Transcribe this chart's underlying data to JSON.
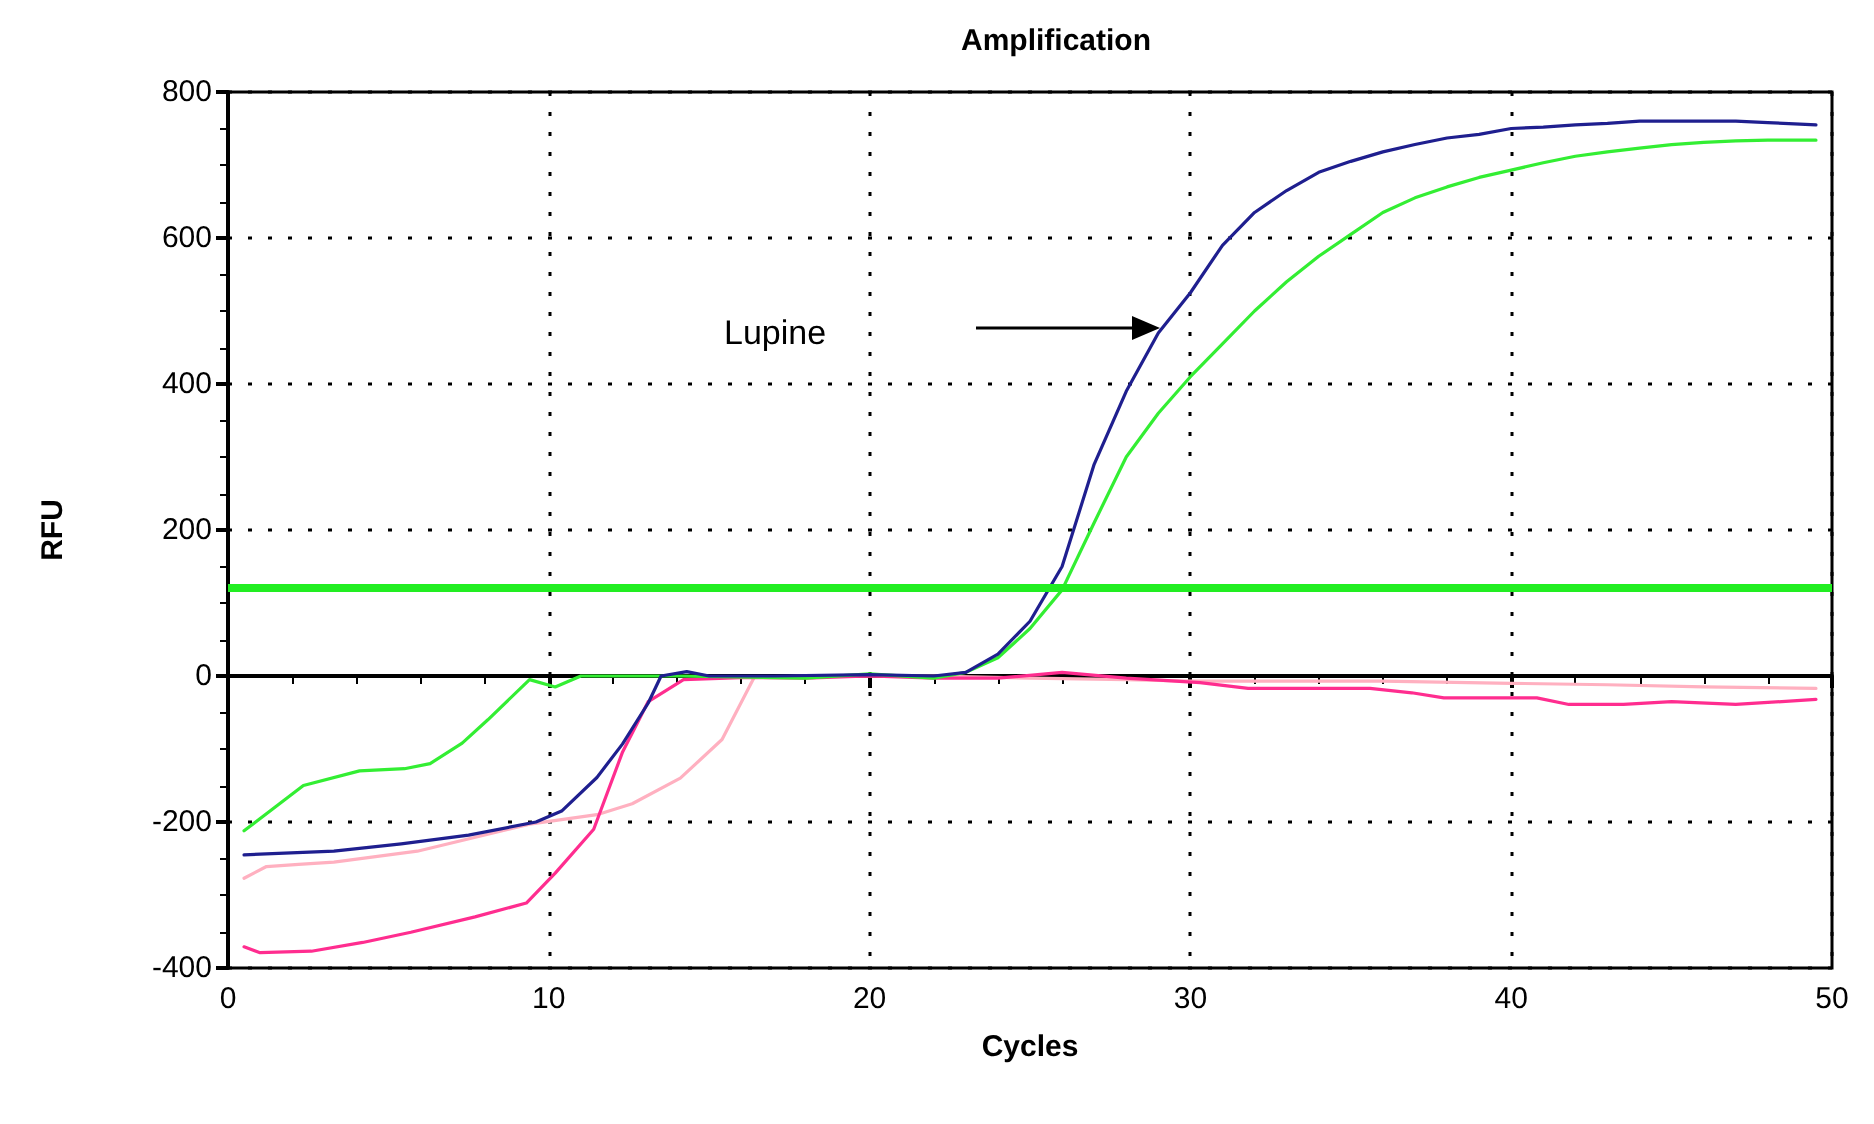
{
  "chart_data": {
    "type": "line",
    "title": "Amplification",
    "xlabel": "Cycles",
    "ylabel": "RFU",
    "xlim": [
      0,
      50
    ],
    "xticks": [
      0,
      10,
      20,
      30,
      40,
      50
    ],
    "ylim": [
      -400,
      800
    ],
    "yticks": [
      -400,
      -200,
      0,
      200,
      400,
      600,
      800
    ],
    "grid": true,
    "marker": "none",
    "line_style": "solid",
    "series": [
      {
        "color": "#ffb0c0",
        "x": [
          0.5,
          1.2,
          2.2,
          3.3,
          5.9,
          9.4,
          11.5,
          12.6,
          14.1,
          15.4,
          16.4,
          18,
          20,
          22,
          25,
          28,
          30,
          33,
          36,
          40,
          43,
          46,
          49.5
        ],
        "values": [
          -277,
          -261,
          -258,
          -255,
          -240,
          -203,
          -190,
          -175,
          -140,
          -87,
          -2,
          0,
          0,
          0,
          -3,
          -5,
          -7,
          -7,
          -7,
          -10,
          -12,
          -15,
          -17
        ]
      },
      {
        "color": "#ff2d8f",
        "x": [
          0.5,
          1,
          2.6,
          4.2,
          5.7,
          7.7,
          9.3,
          10.2,
          11.4,
          12.3,
          13.1,
          14.2,
          16.2,
          18,
          20,
          22,
          24,
          26,
          28,
          30.3,
          31.8,
          35.6,
          36.9,
          37.9,
          40.8,
          41.8,
          43.5,
          45,
          47,
          49.5
        ],
        "values": [
          -371,
          -379,
          -377,
          -365,
          -351,
          -330,
          -311,
          -270,
          -210,
          -104,
          -35,
          -5,
          -2,
          -3,
          0,
          -3,
          -3,
          5,
          -3,
          -9,
          -17,
          -17,
          -23,
          -30,
          -30,
          -39,
          -39,
          -35,
          -39,
          -32
        ]
      },
      {
        "color": "#33ee33",
        "x": [
          0.5,
          2.35,
          4.1,
          5.5,
          6.3,
          7.3,
          8.1,
          9.4,
          10.2,
          11,
          14,
          18,
          20,
          22,
          23,
          24,
          25,
          26,
          27,
          28,
          29,
          30,
          31,
          32,
          33,
          34,
          35,
          36,
          37,
          38,
          39,
          40,
          41,
          42,
          43,
          44,
          45,
          46,
          47,
          48,
          49.5
        ],
        "values": [
          -212,
          -150,
          -130,
          -127,
          -120,
          -92,
          -60,
          -5,
          -15,
          0,
          0,
          -3,
          3,
          -3,
          5,
          25,
          65,
          118,
          210,
          300,
          360,
          410,
          455,
          500,
          540,
          575,
          605,
          635,
          655,
          670,
          683,
          693,
          703,
          712,
          718,
          723,
          728,
          731,
          733,
          734,
          734
        ]
      },
      {
        "color": "#1f1f8f",
        "x": [
          0.5,
          3.3,
          5.4,
          7.5,
          9.6,
          10.4,
          11.5,
          12.3,
          13.1,
          13.5,
          14.3,
          15,
          17,
          20,
          22,
          23,
          24,
          25,
          26,
          27,
          28,
          29,
          30,
          31,
          32,
          33,
          34,
          35,
          36,
          37,
          38,
          39,
          40,
          41,
          42,
          43,
          44,
          45,
          46,
          47,
          48,
          49,
          49.5
        ],
        "values": [
          -245,
          -240,
          -230,
          -218,
          -200,
          -185,
          -139,
          -93,
          -37,
          0,
          6,
          0,
          0,
          2,
          0,
          5,
          30,
          75,
          150,
          290,
          390,
          470,
          525,
          590,
          635,
          665,
          690,
          705,
          718,
          728,
          737,
          742,
          750,
          752,
          755,
          757,
          760,
          760,
          760,
          760,
          758,
          756,
          755
        ]
      }
    ],
    "ref_lines": [
      {
        "axis": "y",
        "value": 120,
        "color": "#22ee22"
      }
    ],
    "annotations": [
      "Lupine"
    ]
  }
}
